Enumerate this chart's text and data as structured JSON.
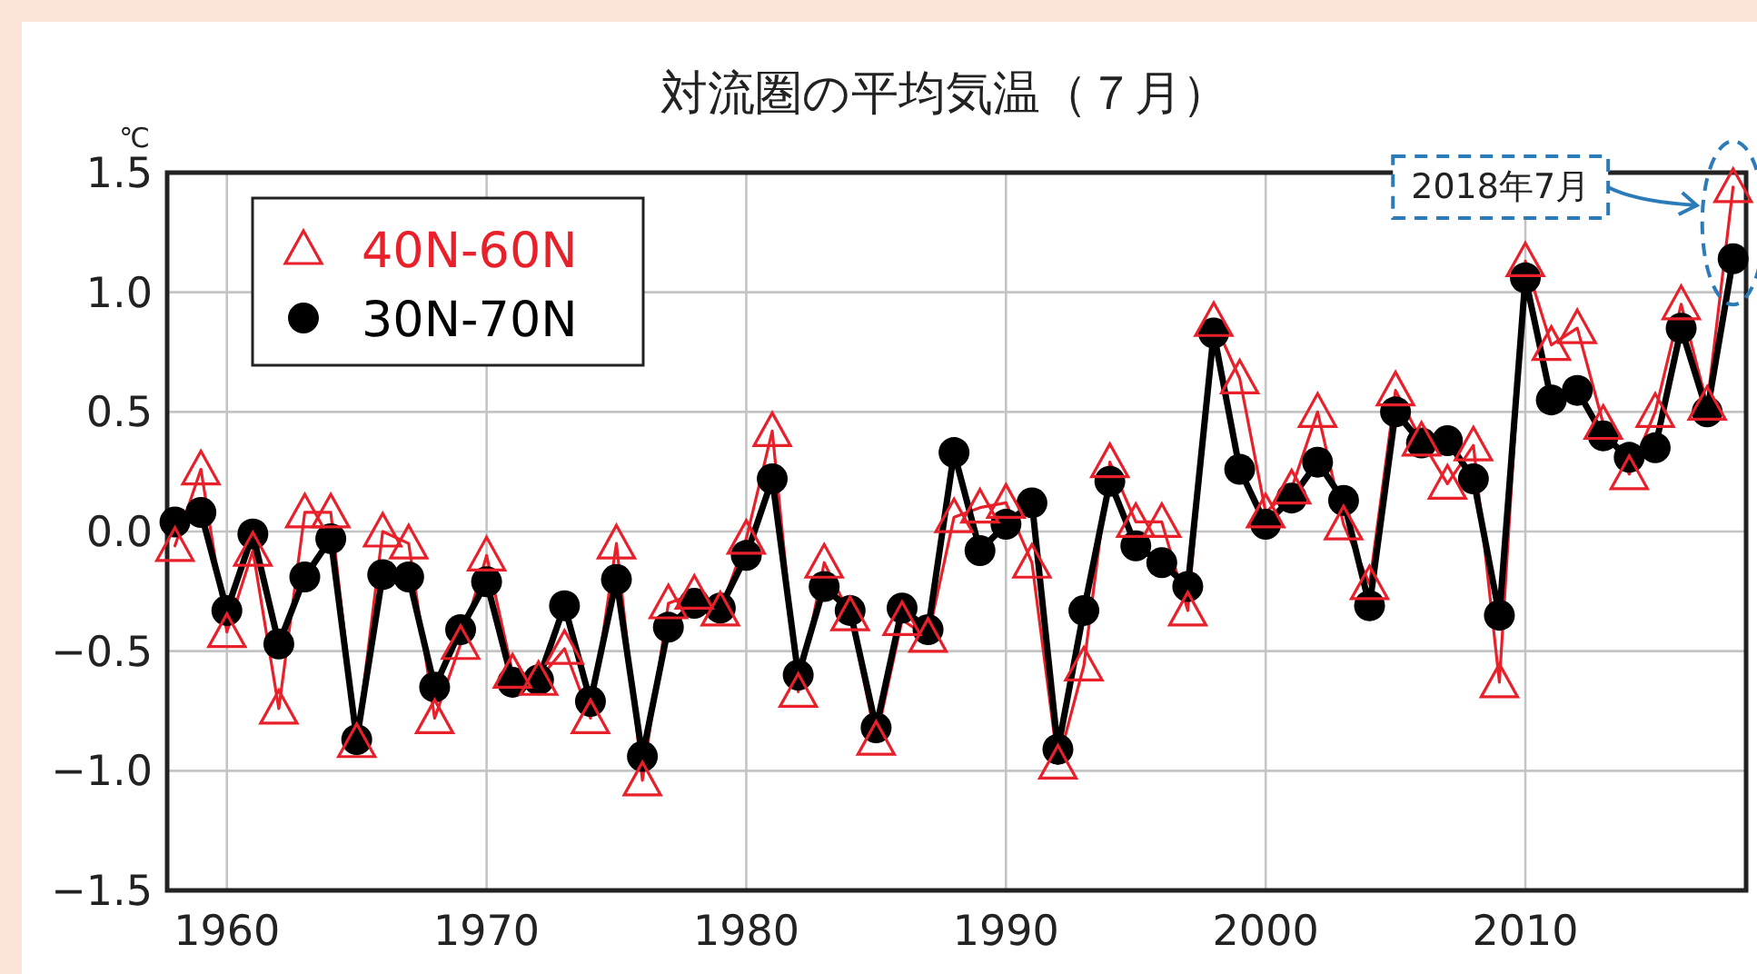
{
  "chart_data": {
    "type": "line",
    "title": "対流圏の平均気温（７月）",
    "ylabel": "℃",
    "x": [
      1958,
      1959,
      1960,
      1961,
      1962,
      1963,
      1964,
      1965,
      1966,
      1967,
      1968,
      1969,
      1970,
      1971,
      1972,
      1973,
      1974,
      1975,
      1976,
      1977,
      1978,
      1979,
      1980,
      1981,
      1982,
      1983,
      1984,
      1985,
      1986,
      1987,
      1988,
      1989,
      1990,
      1991,
      1992,
      1993,
      1994,
      1995,
      1996,
      1997,
      1998,
      1999,
      2000,
      2001,
      2002,
      2003,
      2004,
      2005,
      2006,
      2007,
      2008,
      2009,
      2010,
      2011,
      2012,
      2013,
      2014,
      2015,
      2016,
      2017,
      2018
    ],
    "series": [
      {
        "name": "40N-60N",
        "color": "#e8202a",
        "marker": "triangle",
        "values": [
          -0.06,
          0.26,
          -0.42,
          -0.08,
          -0.74,
          0.08,
          0.08,
          -0.88,
          0.0,
          -0.05,
          -0.78,
          -0.47,
          -0.1,
          -0.59,
          -0.62,
          -0.49,
          -0.78,
          -0.05,
          -1.04,
          -0.3,
          -0.26,
          -0.33,
          -0.03,
          0.42,
          -0.67,
          -0.13,
          -0.35,
          -0.87,
          -0.37,
          -0.44,
          0.06,
          0.1,
          0.12,
          -0.13,
          -0.97,
          -0.56,
          0.29,
          0.04,
          0.04,
          -0.33,
          0.88,
          0.64,
          0.08,
          0.18,
          0.5,
          0.03,
          -0.22,
          0.59,
          0.38,
          0.2,
          0.36,
          -0.63,
          1.13,
          0.78,
          0.85,
          0.45,
          0.24,
          0.5,
          0.95,
          0.53,
          1.44
        ]
      },
      {
        "name": "30N-70N",
        "color": "#000000",
        "marker": "circle",
        "values": [
          0.04,
          0.08,
          -0.33,
          -0.01,
          -0.47,
          -0.19,
          -0.03,
          -0.87,
          -0.18,
          -0.19,
          -0.65,
          -0.41,
          -0.21,
          -0.63,
          -0.62,
          -0.31,
          -0.71,
          -0.2,
          -0.94,
          -0.4,
          -0.3,
          -0.32,
          -0.1,
          0.22,
          -0.6,
          -0.23,
          -0.33,
          -0.82,
          -0.32,
          -0.41,
          0.33,
          -0.08,
          0.03,
          0.12,
          -0.91,
          -0.33,
          0.21,
          -0.06,
          -0.13,
          -0.23,
          0.83,
          0.26,
          0.03,
          0.14,
          0.29,
          0.13,
          -0.31,
          0.5,
          0.37,
          0.38,
          0.22,
          -0.35,
          1.06,
          0.55,
          0.59,
          0.4,
          0.31,
          0.35,
          0.85,
          0.5,
          1.14
        ]
      }
    ],
    "xlim": [
      1957.7,
      2018.5
    ],
    "ylim": [
      -1.5,
      1.5
    ],
    "xticks": [
      1960,
      1970,
      1980,
      1990,
      2000,
      2010
    ],
    "yticks": [
      {
        "value": -1.5,
        "label": "−1.5"
      },
      {
        "value": -1,
        "label": "−1.0"
      },
      {
        "value": -0.5,
        "label": "−0.5"
      },
      {
        "value": 0,
        "label": "0.0"
      },
      {
        "value": 0.5,
        "label": "0.5"
      },
      {
        "value": 1,
        "label": "1.0"
      },
      {
        "value": 1.5,
        "label": "1.5"
      }
    ],
    "grid": true,
    "legend": "top left",
    "annotations": [
      "2018年7月"
    ]
  }
}
